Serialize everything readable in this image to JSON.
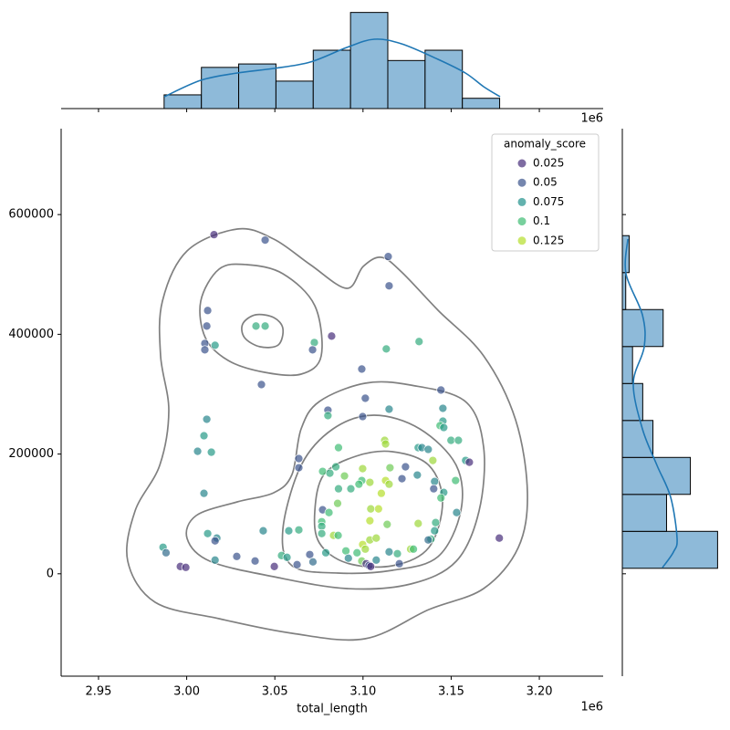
{
  "chart_data": [
    {
      "type": "scatter",
      "xlabel": "total_length",
      "offset_text": "1e6",
      "xlim": [
        2928800,
        3236200
      ],
      "xticks": [
        {
          "value": 2950000,
          "label": "2.95"
        },
        {
          "value": 3000000,
          "label": "3.00"
        },
        {
          "value": 3050000,
          "label": "3.05"
        },
        {
          "value": 3100000,
          "label": "3.10"
        },
        {
          "value": 3150000,
          "label": "3.15"
        },
        {
          "value": 3200000,
          "label": "3.20"
        }
      ],
      "ylim": [
        -171000,
        743500
      ],
      "yticks": [
        0,
        200000,
        400000,
        600000
      ],
      "legend": {
        "title": "anomaly_score",
        "position": "upper right",
        "entries": [
          {
            "value": 0.025,
            "color": "#472d7b"
          },
          {
            "value": 0.05,
            "color": "#3b528b"
          },
          {
            "value": 0.075,
            "color": "#21918c"
          },
          {
            "value": 0.1,
            "color": "#3fbc73"
          },
          {
            "value": 0.125,
            "color": "#b5de2b"
          }
        ]
      },
      "series": [
        {
          "x": [
            3015500,
            3044500,
            3114300,
            3114800,
            3011900,
            3011400,
            3039300,
            3044500,
            3082200,
            3131800,
            3072400,
            3113200,
            3071400,
            3010300,
            3016100,
            3010300,
            3042400,
            3099300,
            3101300,
            3144200,
            3080100,
            3114800,
            3145300,
            3099800,
            3080100,
            3011400,
            3145300,
            3143700,
            3145800,
            3009800,
            3149900,
            3154100,
            3112300,
            3112800,
            3086100,
            3131300,
            3133400,
            3137000,
            3006200,
            3014000,
            3063600,
            3139600,
            3158200,
            3160300,
            3124100,
            3063600,
            3099800,
            3115300,
            3084600,
            3077100,
            3081200,
            3089500,
            3130800,
            3152500,
            3140600,
            3099300,
            3112800,
            3122100,
            3097700,
            3103900,
            3114800,
            3093100,
            3086100,
            3140100,
            3145800,
            3009800,
            3110400,
            3144200,
            3085600,
            3108800,
            3104400,
            3077100,
            3080700,
            3153100,
            3103900,
            3141200,
            3131300,
            3076600,
            3113700,
            3076600,
            3063600,
            3057900,
            3043400,
            3140600,
            3076600,
            3011900,
            3083300,
            3085900,
            3017100,
            3138500,
            3137000,
            3016100,
            3103900,
            3107500,
            3177300,
            2986600,
            3099800,
            3101300,
            3127000,
            3128600,
            3090300,
            3078900,
            3096600,
            3114800,
            3119500,
            2988300,
            3091700,
            3053800,
            3056900,
            3069800,
            3028400,
            3038800,
            3016100,
            3071600,
            3107500,
            3099300,
            3062600,
            3101800,
            3120600,
            3103400,
            3104400,
            2996400,
            2999500,
            3049700
          ],
          "y": [
            566500,
            557400,
            529900,
            481000,
            439800,
            413800,
            413800,
            413800,
            397000,
            387900,
            386300,
            375600,
            374100,
            384800,
            381700,
            374100,
            316100,
            342000,
            293200,
            306900,
            273300,
            274900,
            276400,
            262600,
            264200,
            258100,
            255000,
            247400,
            244300,
            230600,
            222900,
            222900,
            222900,
            216800,
            210700,
            210700,
            210700,
            207700,
            204600,
            203100,
            192400,
            189300,
            189300,
            186300,
            178700,
            177100,
            175600,
            177100,
            178700,
            171000,
            168000,
            163400,
            164900,
            155800,
            154200,
            155800,
            155800,
            158800,
            149600,
            152700,
            149600,
            142000,
            142000,
            142000,
            135900,
            134400,
            134400,
            126700,
            117600,
            108400,
            108400,
            106900,
            102300,
            102300,
            88600,
            85500,
            84000,
            87000,
            82500,
            79400,
            73300,
            71800,
            71800,
            71800,
            67200,
            67200,
            64100,
            64100,
            59600,
            58000,
            56500,
            55000,
            56500,
            59600,
            59600,
            44300,
            48900,
            41200,
            41200,
            41200,
            38200,
            35100,
            35100,
            36600,
            33600,
            35100,
            26000,
            30500,
            27500,
            32100,
            29000,
            21400,
            22900,
            19900,
            22900,
            21400,
            15300,
            16800,
            16800,
            13700,
            12200,
            12200,
            10700,
            12200
          ],
          "hue": [
            0.02,
            0.05,
            0.05,
            0.05,
            0.05,
            0.05,
            0.09,
            0.09,
            0.02,
            0.09,
            0.09,
            0.09,
            0.05,
            0.05,
            0.08,
            0.05,
            0.05,
            0.05,
            0.05,
            0.05,
            0.05,
            0.07,
            0.07,
            0.05,
            0.09,
            0.07,
            0.08,
            0.1,
            0.08,
            0.08,
            0.09,
            0.09,
            0.12,
            0.12,
            0.1,
            0.08,
            0.07,
            0.07,
            0.07,
            0.08,
            0.05,
            0.12,
            0.08,
            0.02,
            0.05,
            0.05,
            0.12,
            0.11,
            0.09,
            0.1,
            0.09,
            0.11,
            0.07,
            0.1,
            0.07,
            0.1,
            0.13,
            0.05,
            0.1,
            0.12,
            0.12,
            0.09,
            0.09,
            0.05,
            0.08,
            0.07,
            0.13,
            0.1,
            0.11,
            0.14,
            0.12,
            0.05,
            0.1,
            0.07,
            0.14,
            0.09,
            0.12,
            0.1,
            0.11,
            0.09,
            0.09,
            0.08,
            0.07,
            0.08,
            0.09,
            0.08,
            0.12,
            0.1,
            0.07,
            0.09,
            0.06,
            0.05,
            0.12,
            0.12,
            0.02,
            0.08,
            0.13,
            0.12,
            0.12,
            0.1,
            0.1,
            0.08,
            0.1,
            0.07,
            0.09,
            0.06,
            0.07,
            0.09,
            0.08,
            0.05,
            0.05,
            0.05,
            0.07,
            0.06,
            0.07,
            0.11,
            0.05,
            0.02,
            0.05,
            0.05,
            0.02,
            0.02,
            0.02,
            0.02
          ]
        }
      ]
    },
    {
      "type": "histogram",
      "orientation": "vertical",
      "offset_text": "1e6",
      "color": "#8ebad9",
      "bins": [
        2987200,
        3008344,
        3029488,
        3050632,
        3071776,
        3092920,
        3114064,
        3135208,
        3156352,
        3177496
      ],
      "counts": [
        4,
        12,
        13,
        8,
        17,
        28,
        14,
        17,
        3
      ],
      "ylim": [
        0,
        29.5
      ]
    },
    {
      "type": "histogram",
      "orientation": "horizontal",
      "color": "#8ebad9",
      "bins": [
        9160,
        70900,
        132640,
        194380,
        256120,
        317860,
        379600,
        441340,
        503080,
        564820
      ],
      "counts": [
        28,
        13,
        20,
        9,
        6,
        3,
        12,
        1,
        2
      ],
      "xlim": [
        0,
        29.5
      ]
    }
  ]
}
